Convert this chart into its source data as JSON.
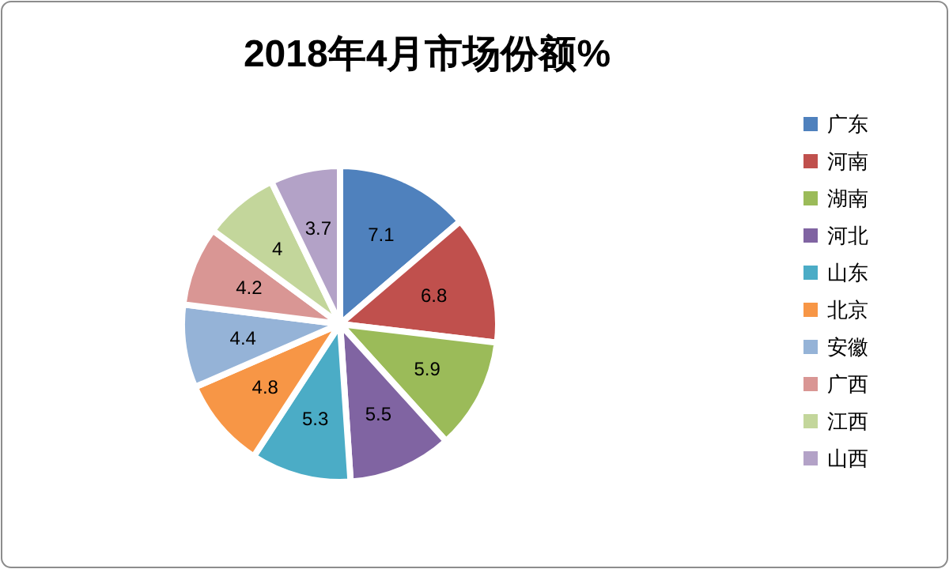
{
  "chart_data": {
    "type": "pie",
    "title": "2018年4月市场份额%",
    "categories": [
      "广东",
      "河南",
      "湖南",
      "河北",
      "山东",
      "北京",
      "安徽",
      "广西",
      "江西",
      "山西"
    ],
    "values": [
      7.1,
      6.8,
      5.9,
      5.5,
      5.3,
      4.8,
      4.4,
      4.2,
      4,
      3.7
    ],
    "colors": [
      "#4f81bd",
      "#c0504d",
      "#9bbb59",
      "#8064a2",
      "#4bacc6",
      "#f79646",
      "#95b3d7",
      "#d99694",
      "#c3d69b",
      "#b3a2c7"
    ],
    "data_labels": true,
    "legend": "right"
  }
}
